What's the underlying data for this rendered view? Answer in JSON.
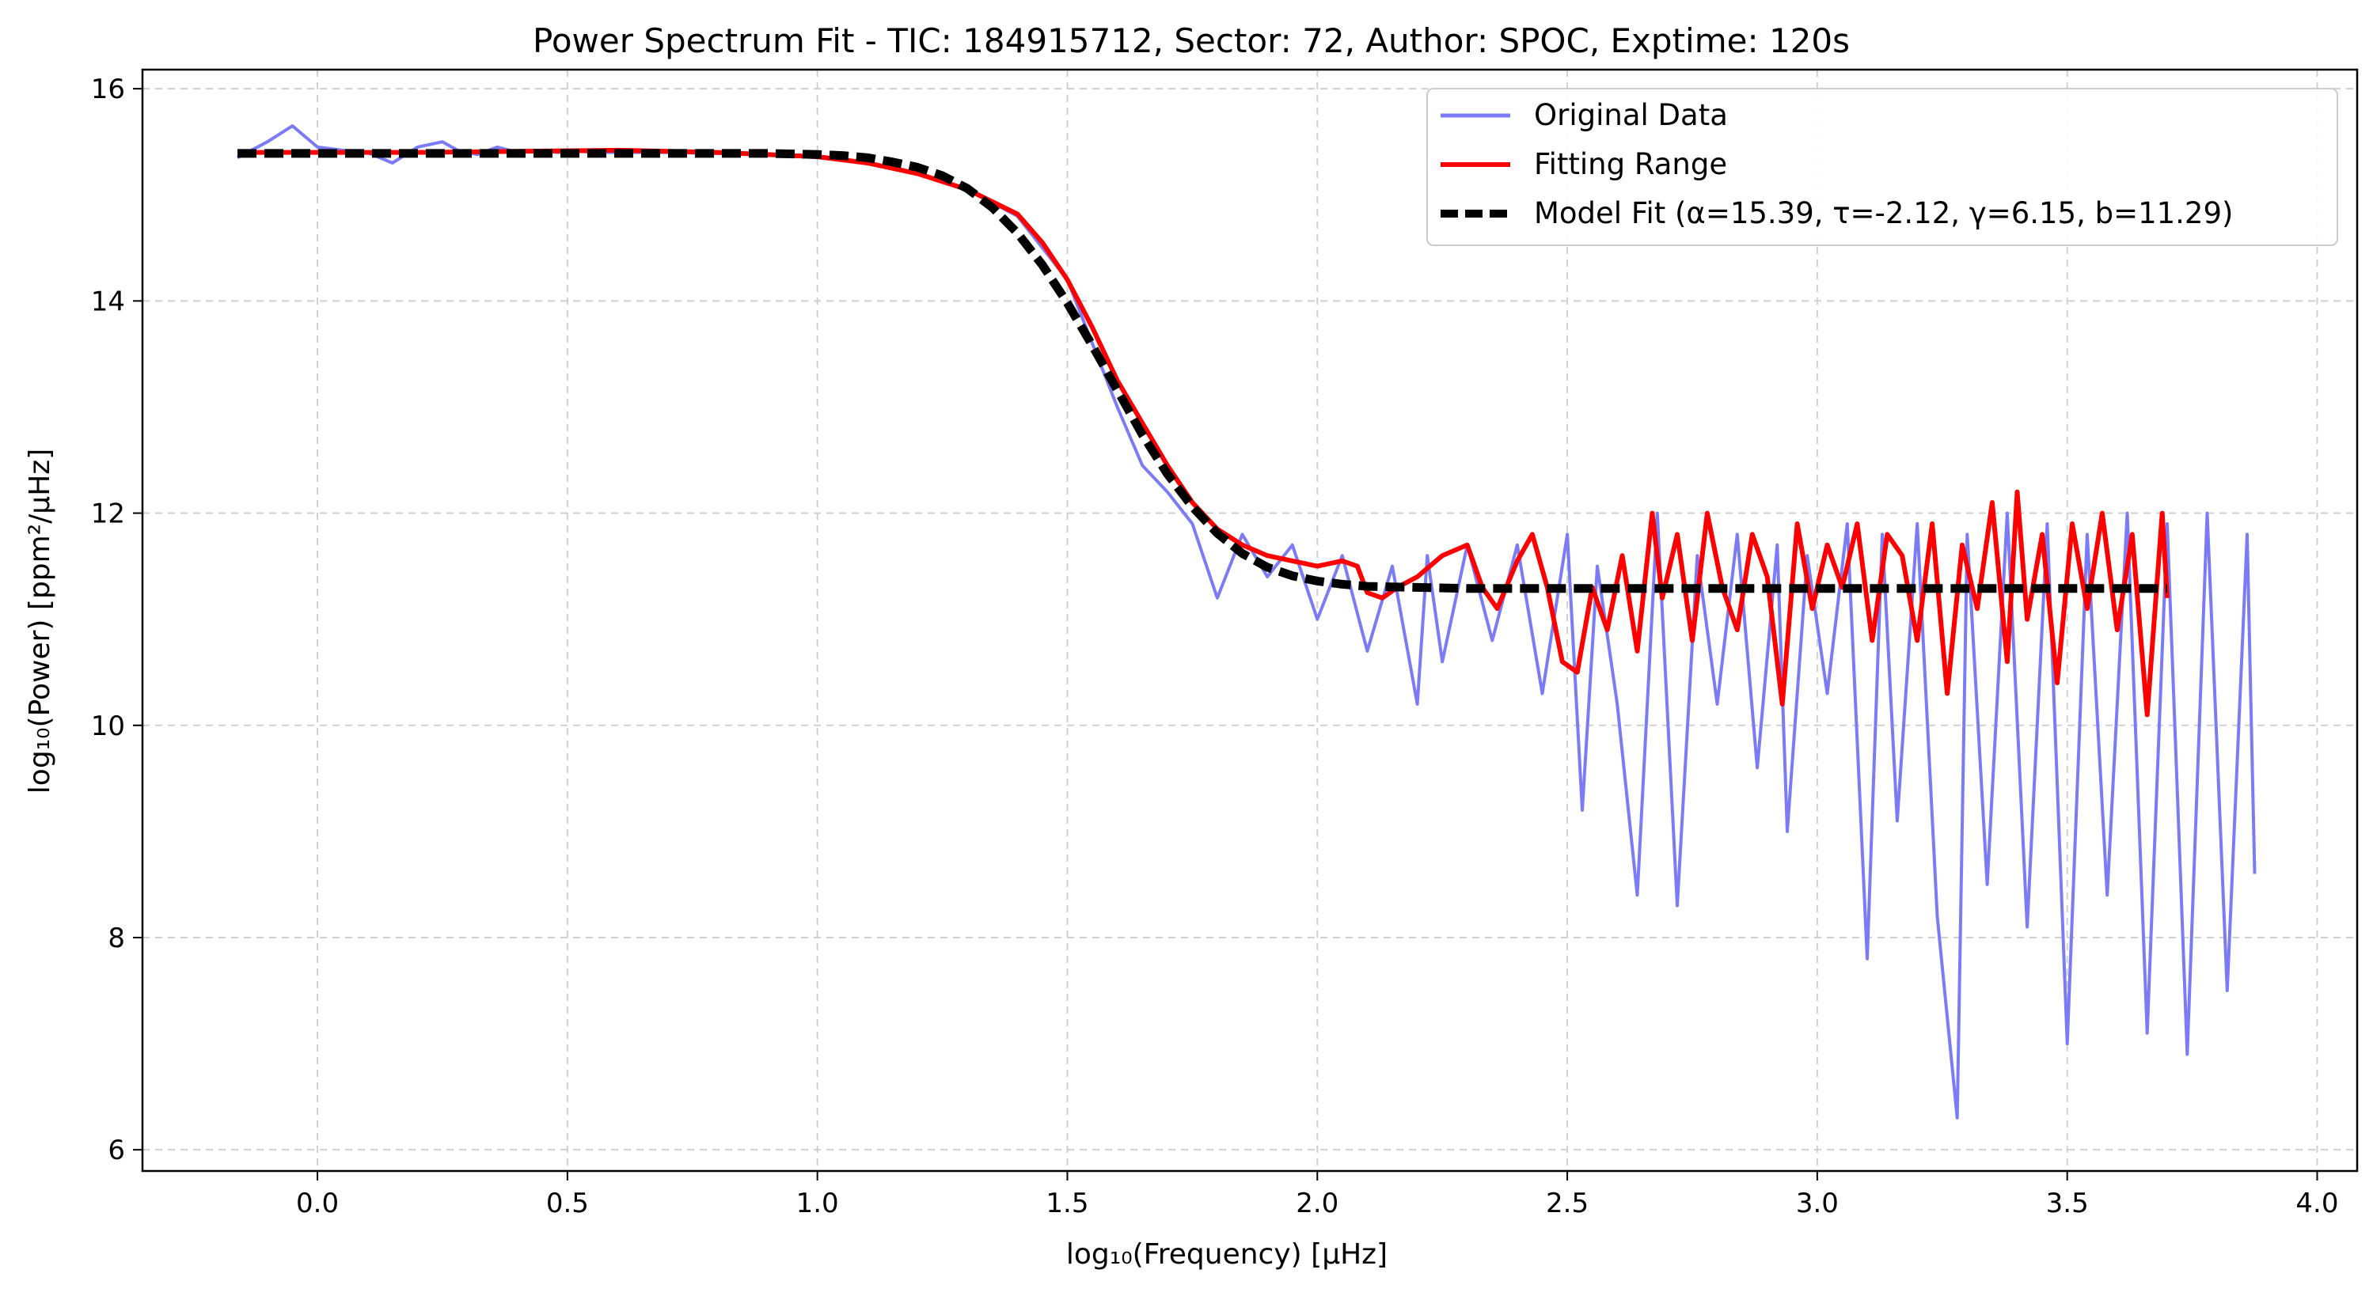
{
  "chart_data": {
    "type": "line",
    "title": "Power Spectrum Fit - TIC: 184915712, Sector: 72, Author: SPOC, Exptime: 120s",
    "xlabel": "log₁₀(Frequency) [μHz]",
    "ylabel": "log₁₀(Power) [ppm²/μHz]",
    "xlim": [
      -0.35,
      4.08
    ],
    "ylim": [
      5.8,
      16.18
    ],
    "xticks": [
      0.0,
      0.5,
      1.0,
      1.5,
      2.0,
      2.5,
      3.0,
      3.5,
      4.0
    ],
    "xtick_labels": [
      "0.0",
      "0.5",
      "1.0",
      "1.5",
      "2.0",
      "2.5",
      "3.0",
      "3.5",
      "4.0"
    ],
    "yticks": [
      6,
      8,
      10,
      12,
      14,
      16
    ],
    "ytick_labels": [
      "6",
      "8",
      "10",
      "12",
      "14",
      "16"
    ],
    "grid": true,
    "legend_position": "top-right",
    "series": [
      {
        "name": "Original Data",
        "color": "#7b7bf7",
        "x": [
          -0.16,
          -0.1,
          -0.05,
          0.0,
          0.05,
          0.1,
          0.15,
          0.2,
          0.25,
          0.28,
          0.32,
          0.36,
          0.4,
          0.44,
          0.48,
          0.52,
          0.56,
          0.6,
          0.7,
          0.8,
          0.9,
          1.0,
          1.1,
          1.2,
          1.3,
          1.4,
          1.45,
          1.5,
          1.55,
          1.6,
          1.65,
          1.7,
          1.75,
          1.8,
          1.85,
          1.9,
          1.95,
          2.0,
          2.05,
          2.1,
          2.15,
          2.2,
          2.22,
          2.25,
          2.3,
          2.35,
          2.4,
          2.45,
          2.5,
          2.53,
          2.56,
          2.6,
          2.64,
          2.68,
          2.72,
          2.76,
          2.8,
          2.84,
          2.88,
          2.92,
          2.94,
          2.98,
          3.02,
          3.06,
          3.1,
          3.13,
          3.16,
          3.2,
          3.24,
          3.28,
          3.3,
          3.34,
          3.38,
          3.42,
          3.46,
          3.5,
          3.54,
          3.58,
          3.62,
          3.66,
          3.7,
          3.74,
          3.78,
          3.82,
          3.86,
          3.875
        ],
        "y": [
          15.35,
          15.5,
          15.65,
          15.45,
          15.42,
          15.4,
          15.3,
          15.45,
          15.5,
          15.42,
          15.38,
          15.45,
          15.4,
          15.42,
          15.4,
          15.41,
          15.4,
          15.4,
          15.4,
          15.39,
          15.38,
          15.35,
          15.3,
          15.2,
          15.05,
          14.8,
          14.5,
          14.2,
          13.6,
          13.0,
          12.45,
          12.2,
          11.9,
          11.2,
          11.8,
          11.4,
          11.7,
          11.0,
          11.6,
          10.7,
          11.5,
          10.2,
          11.6,
          10.6,
          11.7,
          10.8,
          11.7,
          10.3,
          11.8,
          9.2,
          11.5,
          10.2,
          8.4,
          12.0,
          8.3,
          11.6,
          10.2,
          11.8,
          9.6,
          11.7,
          9.0,
          11.6,
          10.3,
          11.9,
          7.8,
          11.8,
          9.1,
          11.9,
          8.2,
          6.3,
          11.8,
          8.5,
          12.0,
          8.1,
          11.9,
          7.0,
          11.8,
          8.4,
          12.0,
          7.1,
          11.9,
          6.9,
          12.0,
          7.5,
          11.8,
          8.6
        ]
      },
      {
        "name": "Fitting Range",
        "color": "#ff0000",
        "x": [
          -0.16,
          0.2,
          0.4,
          0.6,
          0.8,
          1.0,
          1.1,
          1.2,
          1.3,
          1.4,
          1.45,
          1.5,
          1.55,
          1.6,
          1.65,
          1.7,
          1.75,
          1.8,
          1.85,
          1.9,
          1.95,
          2.0,
          2.05,
          2.08,
          2.1,
          2.13,
          2.16,
          2.2,
          2.25,
          2.3,
          2.33,
          2.36,
          2.4,
          2.43,
          2.46,
          2.49,
          2.52,
          2.55,
          2.58,
          2.61,
          2.64,
          2.67,
          2.69,
          2.72,
          2.75,
          2.78,
          2.81,
          2.84,
          2.87,
          2.9,
          2.93,
          2.96,
          2.99,
          3.02,
          3.05,
          3.08,
          3.11,
          3.14,
          3.17,
          3.2,
          3.23,
          3.26,
          3.29,
          3.32,
          3.35,
          3.38,
          3.4,
          3.42,
          3.45,
          3.48,
          3.51,
          3.54,
          3.57,
          3.6,
          3.63,
          3.66,
          3.69,
          3.7
        ],
        "y": [
          15.4,
          15.4,
          15.41,
          15.42,
          15.4,
          15.36,
          15.3,
          15.2,
          15.05,
          14.82,
          14.55,
          14.2,
          13.75,
          13.25,
          12.85,
          12.45,
          12.1,
          11.85,
          11.7,
          11.6,
          11.55,
          11.5,
          11.55,
          11.5,
          11.25,
          11.2,
          11.3,
          11.4,
          11.6,
          11.7,
          11.3,
          11.1,
          11.55,
          11.8,
          11.3,
          10.6,
          10.5,
          11.3,
          10.9,
          11.6,
          10.7,
          12.0,
          11.2,
          11.8,
          10.8,
          12.0,
          11.3,
          10.9,
          11.8,
          11.4,
          10.2,
          11.9,
          11.1,
          11.7,
          11.3,
          11.9,
          10.8,
          11.8,
          11.6,
          10.8,
          11.9,
          10.3,
          11.7,
          11.1,
          12.1,
          10.6,
          12.2,
          11.0,
          11.8,
          10.4,
          11.9,
          11.1,
          12.0,
          10.9,
          11.8,
          10.1,
          12.0,
          11.2
        ]
      },
      {
        "name": "Model Fit (α=15.39, τ=-2.12, γ=6.15, b=11.29)",
        "color": "#000000",
        "dashed": true,
        "x": [
          -0.16,
          0.0,
          0.2,
          0.4,
          0.6,
          0.8,
          0.9,
          1.0,
          1.05,
          1.1,
          1.15,
          1.2,
          1.25,
          1.3,
          1.35,
          1.4,
          1.45,
          1.5,
          1.55,
          1.6,
          1.65,
          1.7,
          1.75,
          1.8,
          1.85,
          1.9,
          1.95,
          2.0,
          2.05,
          2.1,
          2.2,
          2.3,
          2.5,
          2.8,
          3.0,
          3.3,
          3.6,
          3.7
        ],
        "y": [
          15.39,
          15.39,
          15.39,
          15.39,
          15.39,
          15.39,
          15.39,
          15.38,
          15.37,
          15.35,
          15.31,
          15.26,
          15.18,
          15.06,
          14.88,
          14.64,
          14.34,
          13.98,
          13.58,
          13.16,
          12.74,
          12.37,
          12.06,
          11.81,
          11.62,
          11.49,
          11.41,
          11.36,
          11.33,
          11.31,
          11.3,
          11.29,
          11.29,
          11.29,
          11.29,
          11.29,
          11.29,
          11.29
        ]
      }
    ]
  }
}
